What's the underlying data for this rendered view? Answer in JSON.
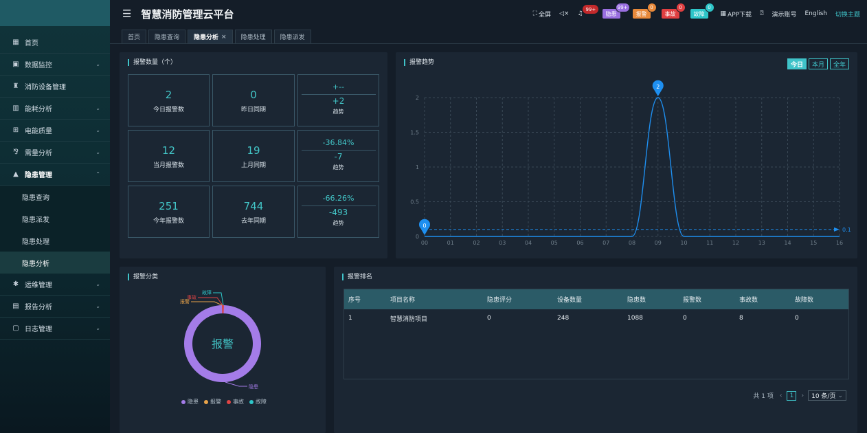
{
  "app": {
    "title": "智慧消防管理云平台"
  },
  "header": {
    "fullscreen": "全屏",
    "bell_count": "99+",
    "badges": [
      {
        "label": "隐患",
        "count": "99+",
        "color": "#9a6fe0",
        "badge_color": "#9a6fe0"
      },
      {
        "label": "报警",
        "count": "0",
        "color": "#e8893a",
        "badge_color": "#e8893a"
      },
      {
        "label": "事故",
        "count": "0",
        "color": "#e03f41",
        "badge_color": "#e03f41"
      },
      {
        "label": "故障",
        "count": "0",
        "color": "#2ec6c9",
        "badge_color": "#2ec6c9"
      }
    ],
    "app_download": "APP下载",
    "demo_account": "演示账号",
    "language": "English",
    "switch_theme": "切换主题"
  },
  "sidebar": {
    "items": [
      {
        "label": "首页",
        "icon": "grid-icon"
      },
      {
        "label": "数据监控",
        "icon": "monitor-icon"
      },
      {
        "label": "消防设备管理",
        "icon": "extinguisher-icon"
      },
      {
        "label": "能耗分析",
        "icon": "bar-chart-icon"
      },
      {
        "label": "电能质量",
        "icon": "power-icon"
      },
      {
        "label": "需量分析",
        "icon": "network-icon"
      },
      {
        "label": "隐患管理",
        "icon": "warning-icon"
      },
      {
        "label": "运维管理",
        "icon": "gear-icon"
      },
      {
        "label": "报告分析",
        "icon": "report-icon"
      },
      {
        "label": "日志管理",
        "icon": "log-icon"
      }
    ],
    "sub_items": [
      "隐患查询",
      "隐患派发",
      "隐患处理",
      "隐患分析"
    ]
  },
  "tabs": [
    {
      "label": "首页"
    },
    {
      "label": "隐患查询"
    },
    {
      "label": "隐患分析"
    },
    {
      "label": "隐患处理"
    },
    {
      "label": "隐患派发"
    }
  ],
  "stats": {
    "title": "报警数量（个）",
    "rows": [
      {
        "v1": "2",
        "l1": "今日报警数",
        "v2": "0",
        "l2": "昨日同期",
        "pct": "+--",
        "diff": "+2",
        "trend": "趋势"
      },
      {
        "v1": "12",
        "l1": "当月报警数",
        "v2": "19",
        "l2": "上月同期",
        "pct": "-36.84%",
        "diff": "-7",
        "trend": "趋势"
      },
      {
        "v1": "251",
        "l1": "今年报警数",
        "v2": "744",
        "l2": "去年同期",
        "pct": "-66.26%",
        "diff": "-493",
        "trend": "趋势"
      }
    ]
  },
  "trend": {
    "title": "报警趋势",
    "ranges": [
      "今日",
      "本月",
      "全年"
    ]
  },
  "chart_data": {
    "type": "line",
    "title": "报警趋势",
    "x": [
      "00",
      "01",
      "02",
      "03",
      "04",
      "05",
      "06",
      "07",
      "08",
      "09",
      "10",
      "11",
      "12",
      "13",
      "14",
      "15",
      "16"
    ],
    "values": [
      0,
      0,
      0,
      0,
      0,
      0,
      0,
      0,
      0,
      2,
      0,
      0,
      0,
      0,
      0,
      0,
      0
    ],
    "y_ticks": [
      "0",
      "0.5",
      "1",
      "1.5",
      "2"
    ],
    "ylim": [
      0,
      2
    ],
    "markers": [
      {
        "x": "00",
        "label": "0"
      },
      {
        "x": "09",
        "label": "2"
      }
    ],
    "markline": {
      "value": 0.1,
      "label": "0.1"
    },
    "color": "#1e8ff0"
  },
  "category": {
    "title": "报警分类",
    "center_label": "报警",
    "chart_data": {
      "type": "pie",
      "labels": [
        "隐患",
        "报警",
        "事故",
        "故障"
      ],
      "values": [
        1088,
        0,
        8,
        0
      ],
      "colors": [
        "#a47ce8",
        "#e8a34a",
        "#e04444",
        "#2ec6c9"
      ]
    }
  },
  "ranking": {
    "title": "报警排名",
    "columns": [
      "序号",
      "项目名称",
      "隐患评分",
      "设备数量",
      "隐患数",
      "报警数",
      "事故数",
      "故障数"
    ],
    "rows": [
      [
        "1",
        "智慧消防项目",
        "0",
        "248",
        "1088",
        "0",
        "8",
        "0"
      ]
    ],
    "total": "共 1 项",
    "page": "1",
    "page_size": "10 条/页"
  }
}
